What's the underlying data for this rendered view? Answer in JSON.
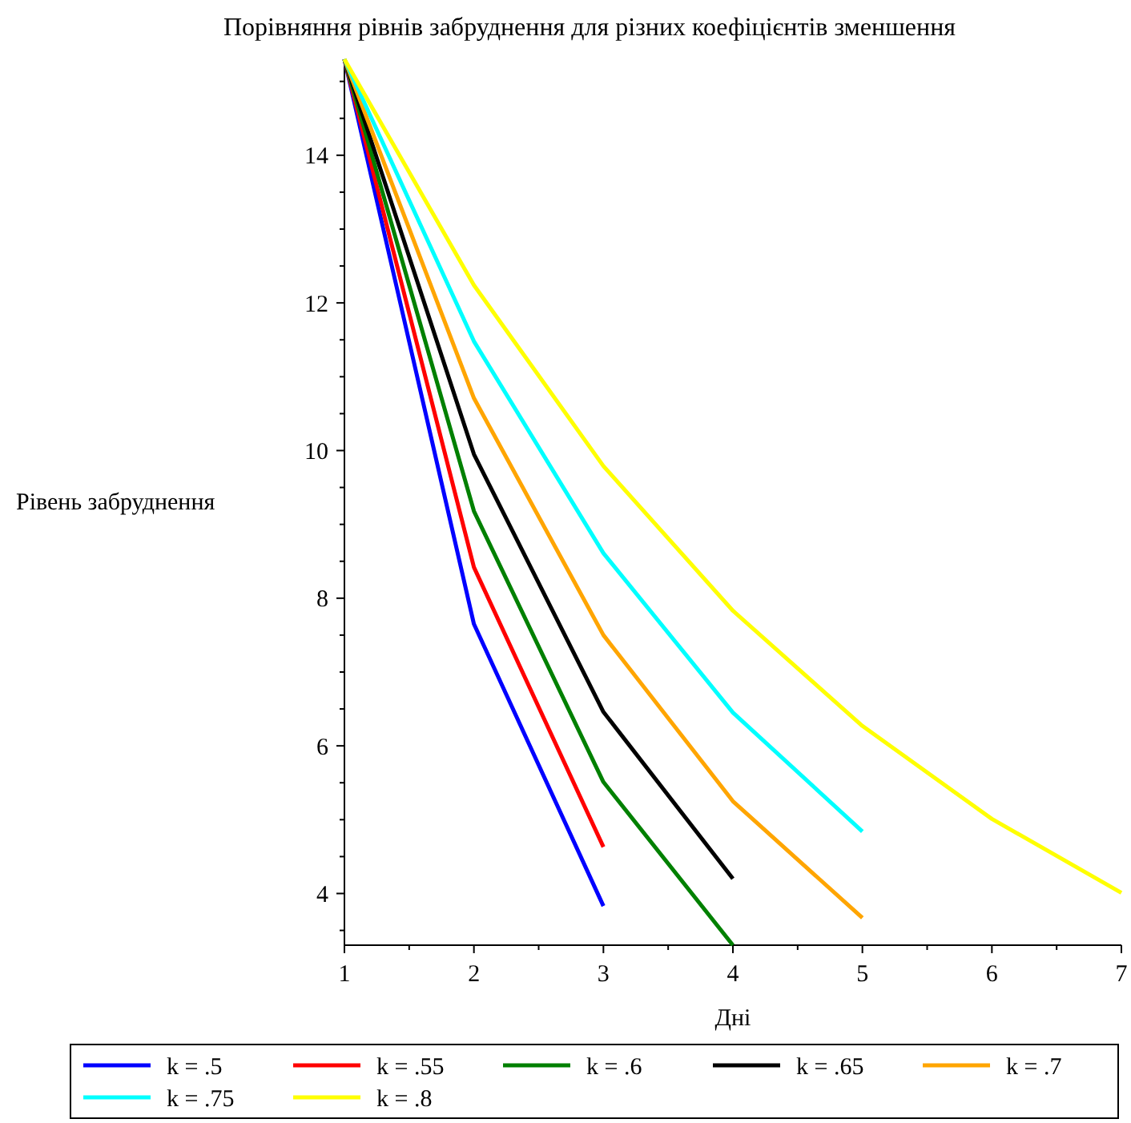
{
  "chart_data": {
    "type": "line",
    "title": "Порівняння рівнів забруднення для різних коефіцієнтів зменшення",
    "xlabel": "Дні",
    "ylabel": "Рівень забруднення",
    "xlim": [
      1,
      7
    ],
    "xticks": [
      1,
      2,
      3,
      4,
      5,
      6,
      7
    ],
    "ylim": [
      3.3,
      15.3
    ],
    "yticks": [
      4,
      6,
      8,
      10,
      12,
      14
    ],
    "grid": false,
    "legend": "bottom",
    "marker": "none",
    "line_style": "solid",
    "series": [
      {
        "name": "k = .5",
        "color": "#0000ff",
        "x": [
          1,
          2,
          3
        ],
        "values": [
          15.3,
          7.65,
          3.83
        ]
      },
      {
        "name": "k = .55",
        "color": "#ff0000",
        "x": [
          1,
          2,
          3
        ],
        "values": [
          15.3,
          8.42,
          4.63
        ]
      },
      {
        "name": "k = .6",
        "color": "#008000",
        "x": [
          1,
          2,
          3,
          4
        ],
        "values": [
          15.3,
          9.18,
          5.51,
          3.3
        ]
      },
      {
        "name": "k = .65",
        "color": "#000000",
        "x": [
          1,
          2,
          3,
          4
        ],
        "values": [
          15.3,
          9.95,
          6.46,
          4.2
        ]
      },
      {
        "name": "k = .7",
        "color": "#ffa500",
        "x": [
          1,
          2,
          3,
          4,
          5
        ],
        "values": [
          15.3,
          10.71,
          7.5,
          5.25,
          3.67
        ]
      },
      {
        "name": "k = .75",
        "color": "#00ffff",
        "x": [
          1,
          2,
          3,
          4,
          5
        ],
        "values": [
          15.3,
          11.48,
          8.61,
          6.45,
          4.84
        ]
      },
      {
        "name": "k = .8",
        "color": "#ffff00",
        "x": [
          1,
          2,
          3,
          4,
          5,
          6,
          7
        ],
        "values": [
          15.3,
          12.24,
          9.79,
          7.83,
          6.27,
          5.01,
          4.01
        ]
      }
    ]
  }
}
